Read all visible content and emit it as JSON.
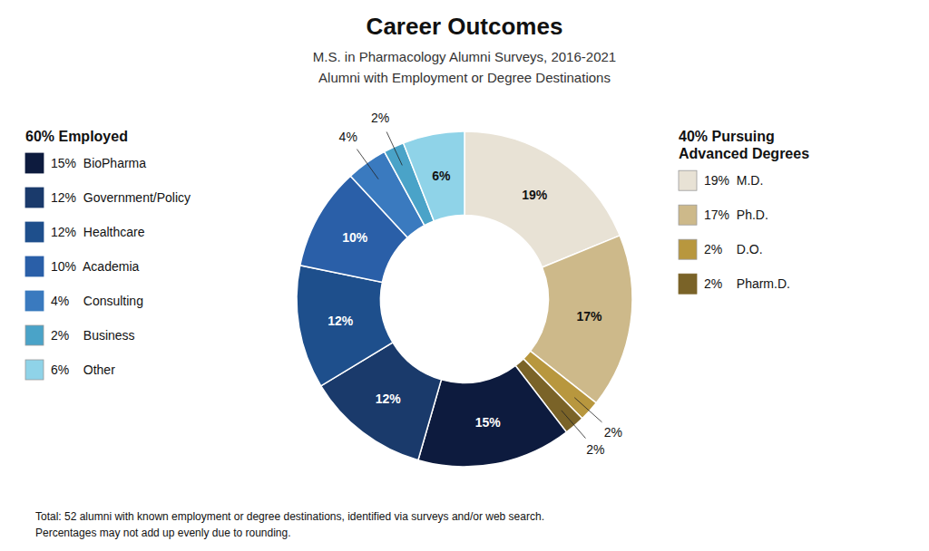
{
  "chart_data": {
    "type": "donut",
    "title": "Career Outcomes",
    "subtitle": [
      "M.S. in Pharmacology Alumni Surveys, 2016-2021",
      "Alumni with Employment or Degree Destinations"
    ],
    "annotations": [
      "Total: 52 alumni with known employment or degree destinations, identified via surveys and/or web search.",
      "Percentages may not add up evenly due to rounding."
    ],
    "data_labels": true,
    "series": [
      {
        "name": "40% Pursuing\nAdvanced Degrees",
        "categories": [
          "19%  M.D.",
          "17%  Ph.D.",
          "2%    D.O.",
          "2%    Pharm.D."
        ],
        "values": [
          19,
          17,
          2,
          2
        ],
        "value_labels": [
          "19%",
          "17%",
          "2%",
          "2%"
        ],
        "colors": [
          "#e8e2d5",
          "#cdb98a",
          "#b8973e",
          "#7a6328"
        ]
      },
      {
        "name": "60% Employed",
        "categories": [
          "15%  BioPharma",
          "12%  Government/Policy",
          "12%  Healthcare",
          "10%  Academia",
          "4%    Consulting",
          "2%    Business",
          "6%    Other"
        ],
        "values": [
          15,
          12,
          12,
          10,
          4,
          2,
          6
        ],
        "value_labels": [
          "15%",
          "12%",
          "12%",
          "10%",
          "4%",
          "2%",
          "6%"
        ],
        "colors": [
          "#0d1b3e",
          "#1a3a6b",
          "#1e4f8c",
          "#2a5fa8",
          "#3a7abf",
          "#4aa3c8",
          "#8fd3e8"
        ]
      }
    ]
  }
}
